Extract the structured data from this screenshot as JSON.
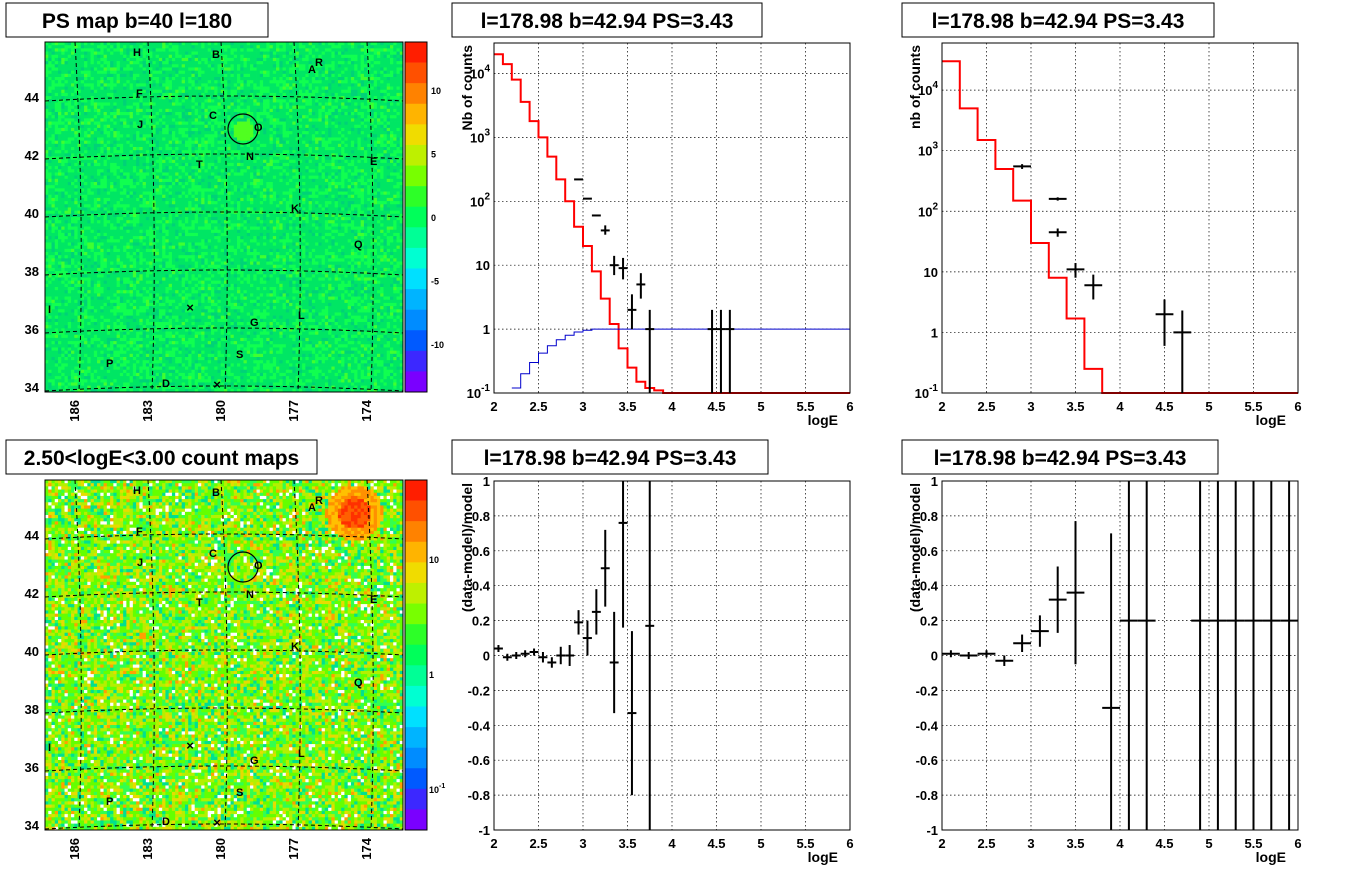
{
  "chart_data": [
    {
      "type": "heatmap",
      "title": "PS map b=40 l=180",
      "x_ticks": [
        "186",
        "183",
        "180",
        "177",
        "174"
      ],
      "y_ticks": [
        "34",
        "36",
        "38",
        "40",
        "42",
        "44"
      ],
      "color_scale_ticks": [
        "10",
        "5",
        "0",
        "-5",
        "-10"
      ],
      "sources": [
        "H",
        "B",
        "R",
        "A",
        "F",
        "J",
        "C",
        "O",
        "N",
        "T",
        "E",
        "K",
        "Q",
        "I",
        "L",
        "G",
        "S",
        "P",
        "D"
      ],
      "circle_label": "O"
    },
    {
      "type": "line",
      "title": "l=178.98 b=42.94 PS=3.43",
      "xlabel": "logE",
      "ylabel": "Nb of counts",
      "xlim": [
        2,
        6
      ],
      "ylim": [
        0.1,
        30000
      ],
      "yscale": "log",
      "x_ticks": [
        "2",
        "2.5",
        "3",
        "3.5",
        "4",
        "4.5",
        "5",
        "5.5",
        "6"
      ],
      "y_ticks": [
        {
          "v": 0.1,
          "t": "10",
          "s": "-1"
        },
        {
          "v": 1,
          "t": "1",
          "s": ""
        },
        {
          "v": 10,
          "t": "10",
          "s": ""
        },
        {
          "v": 100,
          "t": "10",
          "s": "2"
        },
        {
          "v": 1000,
          "t": "10",
          "s": "3"
        },
        {
          "v": 10000,
          "t": "10",
          "s": "4"
        }
      ],
      "series": [
        {
          "color": "#ff0000",
          "kind": "hist",
          "bin_width": 0.1,
          "edges_start": 2.0,
          "values": [
            20000,
            14000,
            8000,
            3600,
            1800,
            1000,
            500,
            220,
            100,
            40,
            20,
            8,
            3,
            1.2,
            0.5,
            0.25,
            0.15,
            0.12,
            0.11,
            0.1,
            0.1,
            0.1,
            0.1,
            0.1,
            0.1,
            0.1,
            0.1,
            0.1,
            0.1,
            0.1,
            0.1,
            0.1,
            0.1,
            0.1,
            0.1,
            0.1,
            0.1,
            0.1,
            0.1,
            0.1
          ]
        },
        {
          "color": "#0000cc",
          "kind": "hist",
          "bin_width": 0.1,
          "edges_start": 2.2,
          "values": [
            0.12,
            0.2,
            0.3,
            0.42,
            0.55,
            0.68,
            0.8,
            0.9,
            0.96,
            1.0,
            1.0,
            1.0,
            1.0,
            1.0,
            1.0,
            1.0,
            1.0,
            1.0,
            1.0,
            1.0,
            1.0,
            1.0,
            1.0,
            1.0,
            1.0,
            1.0,
            1.0,
            1.0,
            1.0,
            1.0,
            1.0,
            1.0,
            1.0,
            1.0,
            1.0,
            1.0,
            1.0,
            1.0
          ]
        },
        {
          "color": "#000000",
          "kind": "points",
          "xerr": 0.05,
          "points": [
            [
              2.95,
              220,
              220,
              220
            ],
            [
              3.05,
              110,
              110,
              110
            ],
            [
              3.15,
              60,
              60,
              60
            ],
            [
              3.25,
              35,
              30,
              42
            ],
            [
              3.35,
              10,
              7,
              14
            ],
            [
              3.45,
              9,
              6,
              13
            ],
            [
              3.55,
              2,
              1,
              3.5
            ],
            [
              3.65,
              5,
              3,
              7.5
            ],
            [
              3.75,
              1,
              0.1,
              2
            ],
            [
              4.45,
              1,
              0.1,
              2
            ],
            [
              4.55,
              1,
              0.1,
              2
            ],
            [
              4.65,
              1,
              0.1,
              2
            ]
          ]
        }
      ]
    },
    {
      "type": "line",
      "title": "l=178.98 b=42.94 PS=3.43",
      "xlabel": "logE",
      "ylabel": "nb of counts",
      "xlim": [
        2,
        6
      ],
      "ylim": [
        0.1,
        60000
      ],
      "yscale": "log",
      "x_ticks": [
        "2",
        "2.5",
        "3",
        "3.5",
        "4",
        "4.5",
        "5",
        "5.5",
        "6"
      ],
      "y_ticks": [
        {
          "v": 0.1,
          "t": "10",
          "s": "-1"
        },
        {
          "v": 1,
          "t": "1",
          "s": ""
        },
        {
          "v": 10,
          "t": "10",
          "s": ""
        },
        {
          "v": 100,
          "t": "10",
          "s": "2"
        },
        {
          "v": 1000,
          "t": "10",
          "s": "3"
        },
        {
          "v": 10000,
          "t": "10",
          "s": "4"
        }
      ],
      "series": [
        {
          "color": "#ff0000",
          "kind": "hist",
          "bin_width": 0.2,
          "edges_start": 2.0,
          "values": [
            30000,
            5000,
            1500,
            500,
            150,
            30,
            8,
            1.7,
            0.25,
            0.1,
            0.1,
            0.1,
            0.1,
            0.1,
            0.1,
            0.1,
            0.1,
            0.1,
            0.1,
            0.1
          ]
        },
        {
          "color": "#000000",
          "kind": "points",
          "xerr": 0.1,
          "points": [
            [
              2.9,
              550,
              500,
              600
            ],
            [
              3.3,
              160,
              150,
              170
            ],
            [
              3.3,
              45,
              38,
              52
            ],
            [
              3.5,
              11,
              8,
              14
            ],
            [
              3.7,
              6,
              3.5,
              9
            ],
            [
              4.5,
              2,
              0.6,
              3.5
            ],
            [
              4.7,
              1,
              0.1,
              2.3
            ]
          ]
        }
      ]
    },
    {
      "type": "heatmap",
      "title": "2.50<logE<3.00 count maps",
      "x_ticks": [
        "186",
        "183",
        "180",
        "177",
        "174"
      ],
      "y_ticks": [
        "34",
        "36",
        "38",
        "40",
        "42",
        "44"
      ],
      "color_scale_ticks": [
        {
          "t": "10",
          "s": ""
        },
        {
          "t": "1",
          "s": ""
        },
        {
          "t": "10",
          "s": "-1"
        }
      ],
      "sources": [
        "H",
        "B",
        "R",
        "A",
        "F",
        "J",
        "C",
        "O",
        "N",
        "T",
        "E",
        "K",
        "Q",
        "I",
        "L",
        "G",
        "S",
        "P",
        "D"
      ],
      "circle_label": "O"
    },
    {
      "type": "scatter",
      "title": "l=178.98 b=42.94 PS=3.43",
      "xlabel": "logE",
      "ylabel": "(data-model)/model",
      "xlim": [
        2,
        6
      ],
      "ylim": [
        -1,
        1
      ],
      "x_ticks": [
        "2",
        "2.5",
        "3",
        "3.5",
        "4",
        "4.5",
        "5",
        "5.5",
        "6"
      ],
      "y_ticks": [
        "-1",
        "-0.8",
        "-0.6",
        "-0.4",
        "-0.2",
        "0",
        "0.2",
        "0.4",
        "0.6",
        "0.8",
        "1"
      ],
      "xerr": 0.05,
      "points": [
        [
          2.05,
          0.04,
          0.02
        ],
        [
          2.15,
          -0.01,
          0.02
        ],
        [
          2.25,
          0.0,
          0.02
        ],
        [
          2.35,
          0.01,
          0.02
        ],
        [
          2.45,
          0.02,
          0.02
        ],
        [
          2.55,
          -0.01,
          0.03
        ],
        [
          2.65,
          -0.04,
          0.03
        ],
        [
          2.75,
          0.0,
          0.05
        ],
        [
          2.85,
          0.0,
          0.06
        ],
        [
          2.95,
          0.19,
          0.07
        ],
        [
          3.05,
          0.1,
          0.1
        ],
        [
          3.15,
          0.25,
          0.13
        ],
        [
          3.25,
          0.5,
          0.22
        ],
        [
          3.35,
          -0.04,
          0.29
        ],
        [
          3.45,
          0.76,
          0.6
        ],
        [
          3.55,
          -0.33,
          0.47
        ],
        [
          3.75,
          0.17,
          1.2
        ]
      ]
    },
    {
      "type": "scatter",
      "title": "l=178.98 b=42.94 PS=3.43",
      "xlabel": "logE",
      "ylabel": "(data-model)/model",
      "xlim": [
        2,
        6
      ],
      "ylim": [
        -1,
        1
      ],
      "x_ticks": [
        "2",
        "2.5",
        "3",
        "3.5",
        "4",
        "4.5",
        "5",
        "5.5",
        "6"
      ],
      "y_ticks": [
        "-1",
        "-0.8",
        "-0.6",
        "-0.4",
        "-0.2",
        "0",
        "0.2",
        "0.4",
        "0.6",
        "0.8",
        "1"
      ],
      "xerr": 0.1,
      "points": [
        [
          2.1,
          0.01,
          0.02
        ],
        [
          2.3,
          0.0,
          0.02
        ],
        [
          2.5,
          0.01,
          0.02
        ],
        [
          2.7,
          -0.03,
          0.03
        ],
        [
          2.9,
          0.07,
          0.05
        ],
        [
          3.1,
          0.14,
          0.09
        ],
        [
          3.3,
          0.32,
          0.19
        ],
        [
          3.5,
          0.36,
          0.41
        ],
        [
          3.9,
          -0.3,
          1.0
        ],
        [
          4.1,
          0.2,
          1.2
        ],
        [
          4.3,
          0.2,
          1.2
        ],
        [
          4.9,
          0.2,
          1.2
        ],
        [
          5.1,
          0.2,
          1.2
        ],
        [
          5.3,
          0.2,
          1.2
        ],
        [
          5.5,
          0.2,
          1.2
        ],
        [
          5.7,
          0.2,
          1.2
        ],
        [
          5.9,
          0.2,
          1.2
        ]
      ]
    }
  ]
}
